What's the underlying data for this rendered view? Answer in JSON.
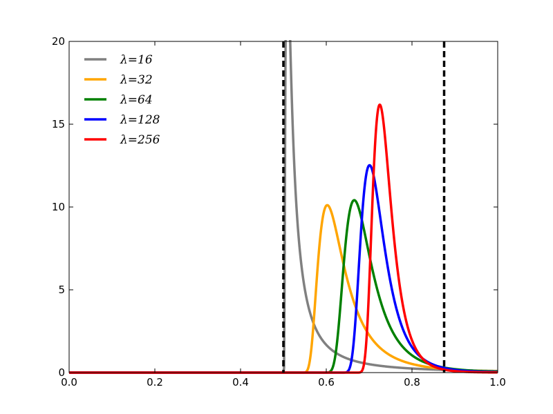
{
  "chart_data": {
    "type": "line",
    "title": "",
    "xlabel": "",
    "ylabel": "",
    "xlim": [
      0.0,
      1.0
    ],
    "ylim": [
      0,
      20
    ],
    "x_ticks": [
      "0.0",
      "0.2",
      "0.4",
      "0.6",
      "0.8",
      "1.0"
    ],
    "y_ticks": [
      "0",
      "5",
      "10",
      "15",
      "20"
    ],
    "grid": false,
    "legend": "top-left",
    "vlines": [
      {
        "x": 0.5,
        "style": "dashed",
        "color": "#000000"
      },
      {
        "x": 0.875,
        "style": "dashed",
        "color": "#000000"
      }
    ],
    "series": [
      {
        "name": "λ=16",
        "color": "#808080",
        "lower": 0.5,
        "peak_x": 0.52,
        "peak_y": 16.2
      },
      {
        "name": "λ=32",
        "color": "#FFA500",
        "lower": 0.5,
        "peak_x": 0.613,
        "peak_y": 9.6
      },
      {
        "name": "λ=64",
        "color": "#008000",
        "lower": 0.5,
        "peak_x": 0.672,
        "peak_y": 10.2
      },
      {
        "name": "λ=128",
        "color": "#0000FF",
        "lower": 0.5,
        "peak_x": 0.705,
        "peak_y": 12.4
      },
      {
        "name": "λ=256",
        "color": "#FF0000",
        "lower": 0.5,
        "peak_x": 0.727,
        "peak_y": 16.1
      }
    ]
  }
}
